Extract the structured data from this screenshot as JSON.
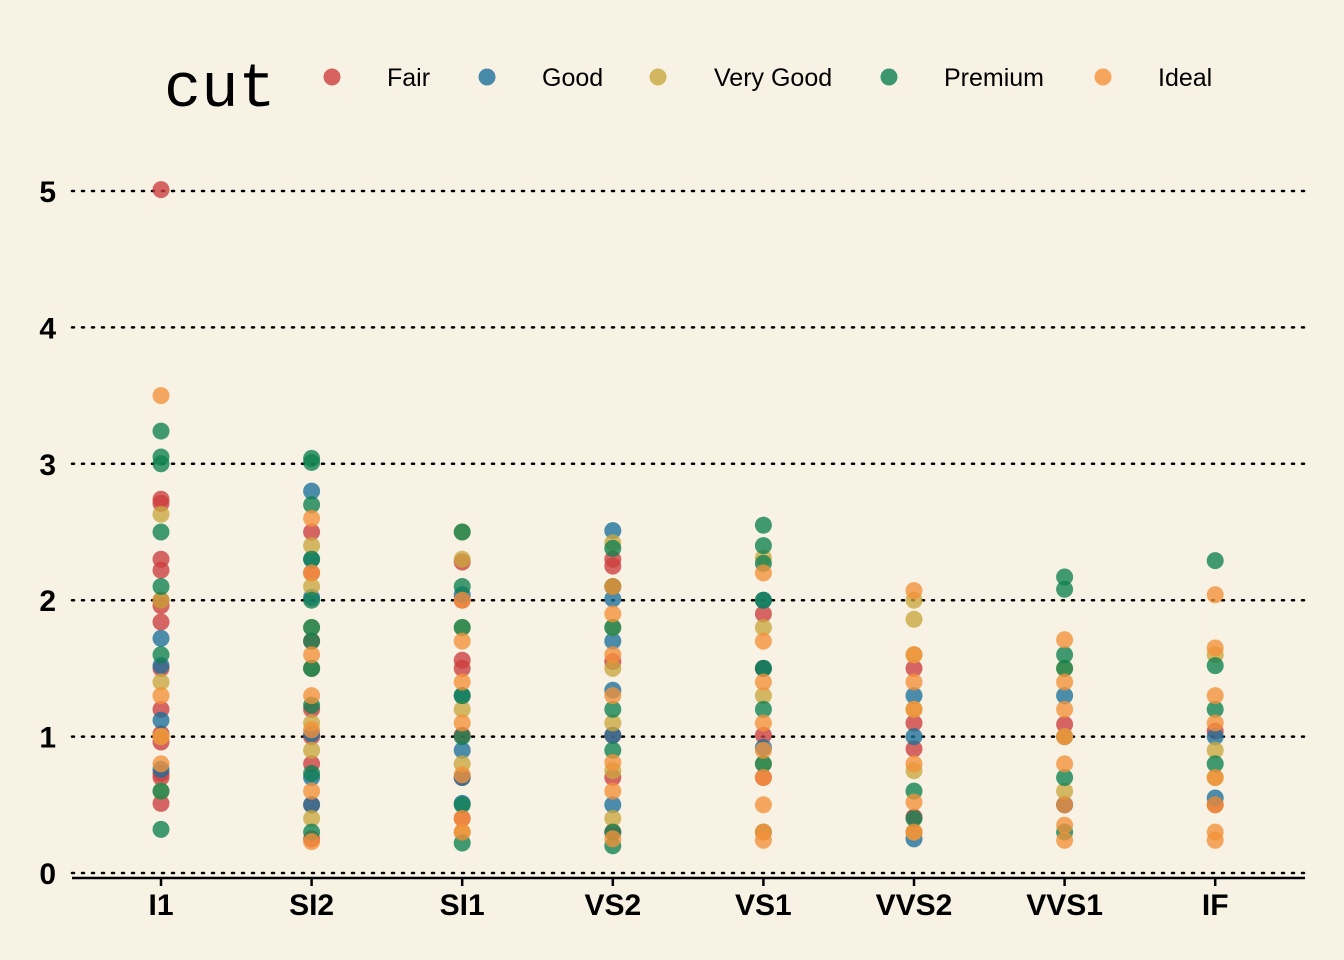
{
  "chart_data": {
    "type": "scatter",
    "title": "",
    "xlabel": "",
    "ylabel": "",
    "legend_title": "cut",
    "legend_placement": "top",
    "categories": [
      "I1",
      "SI2",
      "SI1",
      "VS2",
      "VS1",
      "VVS2",
      "VVS1",
      "IF"
    ],
    "y_ticks": [
      0,
      1,
      2,
      3,
      4,
      5
    ],
    "ylim": [
      0,
      5
    ],
    "grid": true,
    "series": [
      {
        "name": "Fair",
        "color": "#CC3D3D",
        "points": [
          [
            "I1",
            5.01
          ],
          [
            "I1",
            2.74
          ],
          [
            "I1",
            2.71
          ],
          [
            "I1",
            2.3
          ],
          [
            "I1",
            2.22
          ],
          [
            "I1",
            2.0
          ],
          [
            "I1",
            1.96
          ],
          [
            "I1",
            1.84
          ],
          [
            "I1",
            1.5
          ],
          [
            "I1",
            1.2
          ],
          [
            "I1",
            1.02
          ],
          [
            "I1",
            0.96
          ],
          [
            "I1",
            0.73
          ],
          [
            "I1",
            0.7
          ],
          [
            "I1",
            0.51
          ],
          [
            "SI2",
            2.5
          ],
          [
            "SI2",
            2.2
          ],
          [
            "SI2",
            1.7
          ],
          [
            "SI2",
            1.5
          ],
          [
            "SI2",
            1.2
          ],
          [
            "SI2",
            1.0
          ],
          [
            "SI2",
            0.8
          ],
          [
            "SI2",
            0.5
          ],
          [
            "SI2",
            0.25
          ],
          [
            "SI1",
            2.28
          ],
          [
            "SI1",
            2.0
          ],
          [
            "SI1",
            1.56
          ],
          [
            "SI1",
            1.5
          ],
          [
            "SI1",
            1.01
          ],
          [
            "SI1",
            0.7
          ],
          [
            "SI1",
            0.4
          ],
          [
            "VS2",
            2.3
          ],
          [
            "VS2",
            2.25
          ],
          [
            "VS2",
            1.55
          ],
          [
            "VS2",
            1.01
          ],
          [
            "VS2",
            0.7
          ],
          [
            "VS2",
            0.3
          ],
          [
            "VS1",
            1.9
          ],
          [
            "VS1",
            1.5
          ],
          [
            "VS1",
            1.01
          ],
          [
            "VS1",
            0.7
          ],
          [
            "VVS2",
            1.5
          ],
          [
            "VVS2",
            1.1
          ],
          [
            "VVS2",
            0.91
          ],
          [
            "VVS2",
            0.41
          ],
          [
            "VVS2",
            0.3
          ],
          [
            "VVS1",
            1.09
          ],
          [
            "VVS1",
            0.5
          ],
          [
            "IF",
            1.04
          ],
          [
            "IF",
            0.5
          ]
        ]
      },
      {
        "name": "Good",
        "color": "#1B6F9A",
        "points": [
          [
            "I1",
            1.72
          ],
          [
            "I1",
            1.52
          ],
          [
            "I1",
            1.12
          ],
          [
            "I1",
            0.76
          ],
          [
            "SI2",
            2.8
          ],
          [
            "SI2",
            2.3
          ],
          [
            "SI2",
            2.02
          ],
          [
            "SI2",
            1.5
          ],
          [
            "SI2",
            1.02
          ],
          [
            "SI2",
            0.7
          ],
          [
            "SI2",
            0.5
          ],
          [
            "SI1",
            2.04
          ],
          [
            "SI1",
            1.3
          ],
          [
            "SI1",
            0.9
          ],
          [
            "SI1",
            0.7
          ],
          [
            "SI1",
            0.51
          ],
          [
            "VS2",
            2.51
          ],
          [
            "VS2",
            2.01
          ],
          [
            "VS2",
            1.7
          ],
          [
            "VS2",
            1.34
          ],
          [
            "VS2",
            1.01
          ],
          [
            "VS2",
            0.5
          ],
          [
            "VS1",
            2.0
          ],
          [
            "VS1",
            1.5
          ],
          [
            "VS1",
            0.92
          ],
          [
            "VS1",
            0.3
          ],
          [
            "VVS2",
            1.3
          ],
          [
            "VVS2",
            1.0
          ],
          [
            "VVS2",
            0.25
          ],
          [
            "VVS1",
            1.3
          ],
          [
            "VVS1",
            1.0
          ],
          [
            "VVS1",
            0.5
          ],
          [
            "IF",
            1.0
          ],
          [
            "IF",
            0.55
          ]
        ]
      },
      {
        "name": "Very Good",
        "color": "#C9A73E",
        "points": [
          [
            "I1",
            2.63
          ],
          [
            "I1",
            2.0
          ],
          [
            "I1",
            1.4
          ],
          [
            "I1",
            1.0
          ],
          [
            "I1",
            0.6
          ],
          [
            "SI2",
            2.4
          ],
          [
            "SI2",
            2.1
          ],
          [
            "SI2",
            1.8
          ],
          [
            "SI2",
            1.5
          ],
          [
            "SI2",
            1.1
          ],
          [
            "SI2",
            0.9
          ],
          [
            "SI2",
            0.4
          ],
          [
            "SI1",
            2.5
          ],
          [
            "SI1",
            2.3
          ],
          [
            "SI1",
            1.8
          ],
          [
            "SI1",
            1.2
          ],
          [
            "SI1",
            0.8
          ],
          [
            "SI1",
            0.3
          ],
          [
            "VS2",
            2.42
          ],
          [
            "VS2",
            2.1
          ],
          [
            "VS2",
            1.8
          ],
          [
            "VS2",
            1.5
          ],
          [
            "VS2",
            1.1
          ],
          [
            "VS2",
            0.75
          ],
          [
            "VS2",
            0.4
          ],
          [
            "VS1",
            2.31
          ],
          [
            "VS1",
            1.8
          ],
          [
            "VS1",
            1.3
          ],
          [
            "VS1",
            0.8
          ],
          [
            "VS1",
            0.3
          ],
          [
            "VVS2",
            2.0
          ],
          [
            "VVS2",
            1.86
          ],
          [
            "VVS2",
            1.6
          ],
          [
            "VVS2",
            1.2
          ],
          [
            "VVS2",
            0.75
          ],
          [
            "VVS2",
            0.3
          ],
          [
            "VVS1",
            1.5
          ],
          [
            "VVS1",
            1.0
          ],
          [
            "VVS1",
            0.6
          ],
          [
            "IF",
            1.6
          ],
          [
            "IF",
            0.9
          ],
          [
            "IF",
            0.7
          ]
        ]
      },
      {
        "name": "Premium",
        "color": "#0E8050",
        "points": [
          [
            "I1",
            3.24
          ],
          [
            "I1",
            3.05
          ],
          [
            "I1",
            3.0
          ],
          [
            "I1",
            2.5
          ],
          [
            "I1",
            2.1
          ],
          [
            "I1",
            1.6
          ],
          [
            "I1",
            0.6
          ],
          [
            "I1",
            0.32
          ],
          [
            "SI2",
            3.04
          ],
          [
            "SI2",
            3.01
          ],
          [
            "SI2",
            2.7
          ],
          [
            "SI2",
            2.3
          ],
          [
            "SI2",
            2.0
          ],
          [
            "SI2",
            1.8
          ],
          [
            "SI2",
            1.7
          ],
          [
            "SI2",
            1.5
          ],
          [
            "SI2",
            1.23
          ],
          [
            "SI2",
            0.73
          ],
          [
            "SI2",
            0.3
          ],
          [
            "SI1",
            2.5
          ],
          [
            "SI1",
            2.1
          ],
          [
            "SI1",
            1.8
          ],
          [
            "SI1",
            1.3
          ],
          [
            "SI1",
            1.0
          ],
          [
            "SI1",
            0.5
          ],
          [
            "SI1",
            0.22
          ],
          [
            "VS2",
            2.38
          ],
          [
            "VS2",
            2.1
          ],
          [
            "VS2",
            1.8
          ],
          [
            "VS2",
            1.2
          ],
          [
            "VS2",
            0.9
          ],
          [
            "VS2",
            0.3
          ],
          [
            "VS2",
            0.2
          ],
          [
            "VS1",
            2.55
          ],
          [
            "VS1",
            2.4
          ],
          [
            "VS1",
            2.27
          ],
          [
            "VS1",
            2.0
          ],
          [
            "VS1",
            1.5
          ],
          [
            "VS1",
            1.2
          ],
          [
            "VS1",
            0.8
          ],
          [
            "VVS2",
            0.6
          ],
          [
            "VVS2",
            0.4
          ],
          [
            "VVS1",
            2.17
          ],
          [
            "VVS1",
            2.08
          ],
          [
            "VVS1",
            1.6
          ],
          [
            "VVS1",
            1.5
          ],
          [
            "VVS1",
            0.7
          ],
          [
            "VVS1",
            0.3
          ],
          [
            "IF",
            2.29
          ],
          [
            "IF",
            1.52
          ],
          [
            "IF",
            1.2
          ],
          [
            "IF",
            0.8
          ]
        ]
      },
      {
        "name": "Ideal",
        "color": "#F4913A",
        "points": [
          [
            "I1",
            3.5
          ],
          [
            "I1",
            1.3
          ],
          [
            "I1",
            1.0
          ],
          [
            "I1",
            0.8
          ],
          [
            "SI2",
            2.6
          ],
          [
            "SI2",
            2.2
          ],
          [
            "SI2",
            1.6
          ],
          [
            "SI2",
            1.3
          ],
          [
            "SI2",
            1.05
          ],
          [
            "SI2",
            0.6
          ],
          [
            "SI2",
            0.23
          ],
          [
            "SI1",
            2.0
          ],
          [
            "SI1",
            1.7
          ],
          [
            "SI1",
            1.4
          ],
          [
            "SI1",
            1.1
          ],
          [
            "SI1",
            0.72
          ],
          [
            "SI1",
            0.4
          ],
          [
            "SI1",
            0.3
          ],
          [
            "VS2",
            2.1
          ],
          [
            "VS2",
            1.9
          ],
          [
            "VS2",
            1.6
          ],
          [
            "VS2",
            1.3
          ],
          [
            "VS2",
            0.81
          ],
          [
            "VS2",
            0.6
          ],
          [
            "VS2",
            0.25
          ],
          [
            "VS1",
            2.2
          ],
          [
            "VS1",
            1.7
          ],
          [
            "VS1",
            1.4
          ],
          [
            "VS1",
            1.1
          ],
          [
            "VS1",
            0.9
          ],
          [
            "VS1",
            0.7
          ],
          [
            "VS1",
            0.5
          ],
          [
            "VS1",
            0.3
          ],
          [
            "VS1",
            0.24
          ],
          [
            "VVS2",
            2.07
          ],
          [
            "VVS2",
            1.6
          ],
          [
            "VVS2",
            1.4
          ],
          [
            "VVS2",
            1.2
          ],
          [
            "VVS2",
            0.8
          ],
          [
            "VVS2",
            0.52
          ],
          [
            "VVS2",
            0.3
          ],
          [
            "VVS1",
            1.71
          ],
          [
            "VVS1",
            1.4
          ],
          [
            "VVS1",
            1.2
          ],
          [
            "VVS1",
            1.0
          ],
          [
            "VVS1",
            0.8
          ],
          [
            "VVS1",
            0.5
          ],
          [
            "VVS1",
            0.35
          ],
          [
            "VVS1",
            0.24
          ],
          [
            "IF",
            2.04
          ],
          [
            "IF",
            1.65
          ],
          [
            "IF",
            1.3
          ],
          [
            "IF",
            1.1
          ],
          [
            "IF",
            0.7
          ],
          [
            "IF",
            0.5
          ],
          [
            "IF",
            0.3
          ],
          [
            "IF",
            0.24
          ]
        ]
      }
    ]
  }
}
